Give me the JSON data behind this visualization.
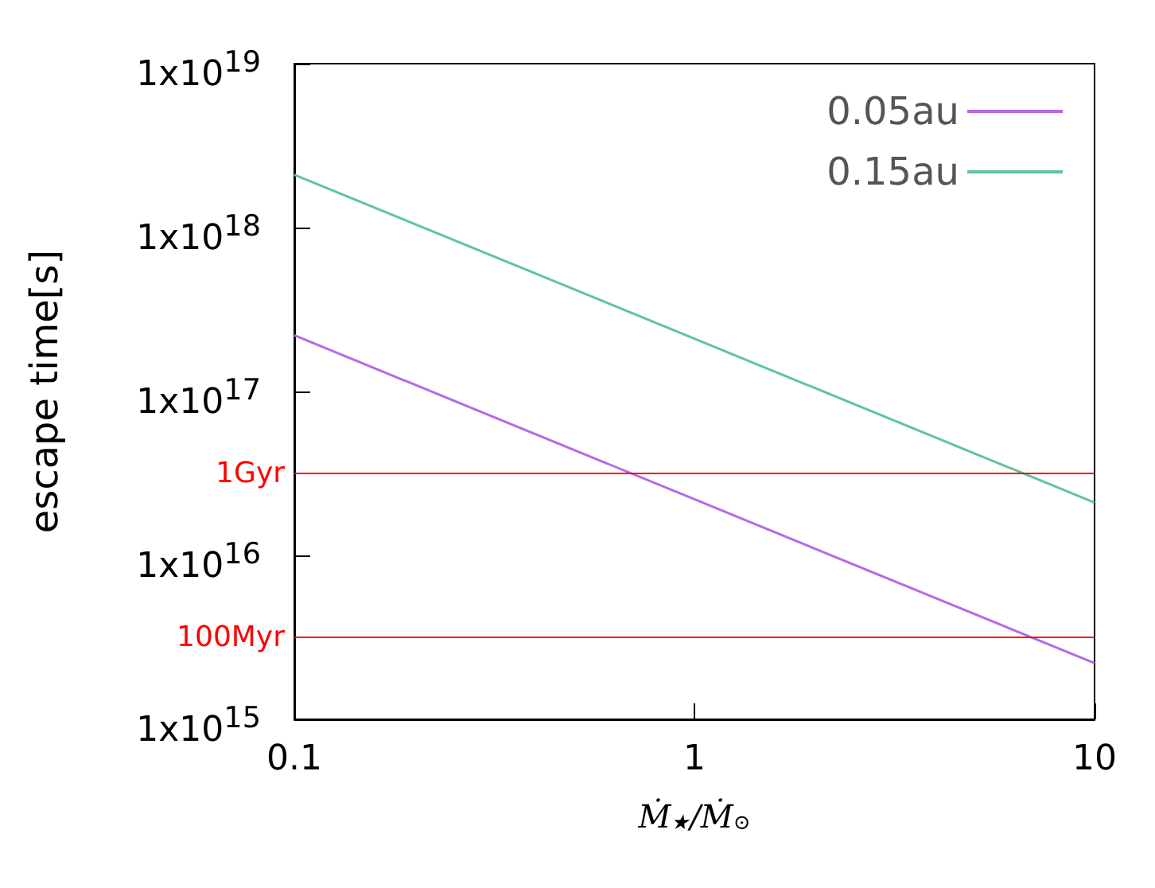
{
  "chart_data": {
    "type": "line",
    "xlabel": "Ṁ$_{★}$/Ṁ$_{⊙}$",
    "ylabel": "escape time[s]",
    "log": "xy",
    "grid": false,
    "legend": "top right",
    "line_style": "solid",
    "marker": "none",
    "x": [
      0.1,
      1,
      10
    ],
    "xlim": [
      0.1,
      10
    ],
    "xticks": [
      0.1,
      1,
      10
    ],
    "ylim": [
      1000000000000000.0,
      1e+19
    ],
    "yticks": [
      {
        "value": 1000000000000000.0,
        "label": "1x10$^{15}$"
      },
      {
        "value": 1e+16,
        "label": "1x10$^{16}$"
      },
      {
        "value": 1e+17,
        "label": "1x10$^{17}$"
      },
      {
        "value": 1e+18,
        "label": "1x10$^{18}$"
      },
      {
        "value": 1e+19,
        "label": "1x10$^{19}$"
      }
    ],
    "series": [
      {
        "name": "0.05au",
        "color": "#b36be8",
        "values": [
          2.2e+17,
          2.2e+16,
          2200000000000000.0
        ]
      },
      {
        "name": "0.15au",
        "color": "#5fc4a0",
        "values": [
          2.1e+18,
          2.1e+17,
          2.1e+16
        ]
      }
    ],
    "ref_lines": [
      {
        "axis": "y",
        "value": 3.15e+16,
        "label": "1Gyr",
        "color": "#ff0000"
      },
      {
        "axis": "y",
        "value": 3150000000000000.0,
        "label": "100Myr",
        "color": "#ff0000"
      }
    ]
  }
}
